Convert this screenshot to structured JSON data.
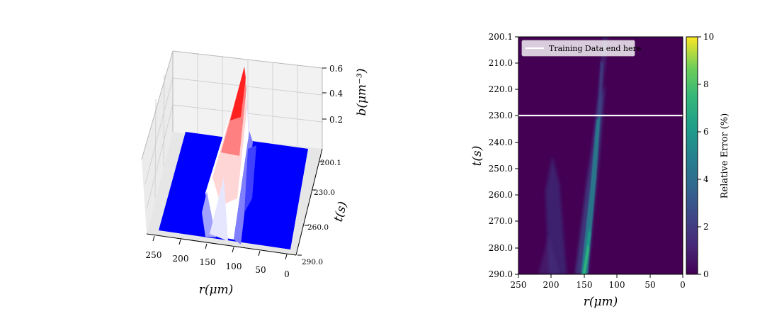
{
  "chart_data": [
    {
      "type": "surface3d",
      "x_label": "r(μm)",
      "x_ticks": [
        "250",
        "200",
        "150",
        "100",
        "50",
        "0"
      ],
      "x_range": [
        0,
        250
      ],
      "y_label": "t(s)",
      "y_ticks": [
        "200.1",
        "230.0",
        "260.0",
        "290.0"
      ],
      "y_range": [
        200.1,
        290.0
      ],
      "z_label": "b(μm⁻³)",
      "z_ticks": [
        "0.2",
        "0.4",
        "0.6"
      ],
      "z_range": [
        0,
        0.6
      ],
      "colormap": "bwr",
      "peak": {
        "t": 200.1,
        "r": 150,
        "b": 0.6
      },
      "peak_end": {
        "t": 290.0,
        "r": 160,
        "b": 0.25
      }
    },
    {
      "type": "heatmap",
      "x_label": "r(μm)",
      "x_ticks": [
        "250",
        "200",
        "150",
        "100",
        "50",
        "0"
      ],
      "x_range": [
        250,
        0
      ],
      "y_label": "t(s)",
      "y_ticks": [
        "200.1",
        "210.0",
        "220.0",
        "230.0",
        "240.0",
        "250.0",
        "260.0",
        "270.0",
        "280.0",
        "290.0"
      ],
      "y_range": [
        200.1,
        290.0
      ],
      "colorbar_label": "Relative Error (%)",
      "colorbar_ticks": [
        "0",
        "2",
        "4",
        "6",
        "8",
        "10"
      ],
      "colorbar_range": [
        0,
        10
      ],
      "colormap": "viridis",
      "hline": {
        "t": 230.0,
        "color": "#ffffff"
      },
      "legend": {
        "label": "Training Data end here",
        "placement": "upper-left"
      },
      "error_streak": {
        "r_start": 133,
        "t_start": 207,
        "r_end": 150,
        "t_end": 290,
        "max_error": 5.3
      }
    }
  ]
}
